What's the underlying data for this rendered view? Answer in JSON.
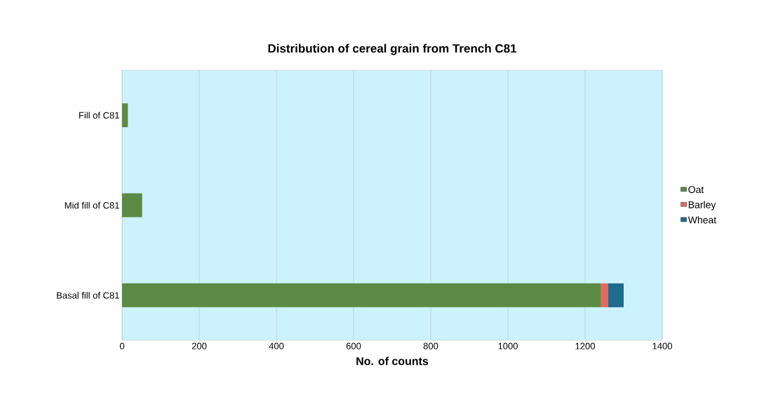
{
  "chart_data": {
    "type": "bar",
    "orientation": "horizontal",
    "stacked": true,
    "title": "Distribution of cereal grain from Trench C81",
    "xlabel": "No. of counts",
    "categories": [
      "Fill of C81",
      "Mid fill of C81",
      "Basal fill of C81"
    ],
    "series": [
      {
        "name": "Oat",
        "color": "#5a8a44",
        "values": [
          15,
          52,
          1240
        ]
      },
      {
        "name": "Barley",
        "color": "#e06a5e",
        "values": [
          0,
          0,
          20
        ]
      },
      {
        "name": "Wheat",
        "color": "#1f6b8e",
        "values": [
          0,
          0,
          40
        ]
      }
    ],
    "xlim": [
      0,
      1400
    ],
    "xticks": [
      0,
      200,
      400,
      600,
      800,
      1000,
      1200,
      1400
    ],
    "grid": "x",
    "legend": "right"
  }
}
